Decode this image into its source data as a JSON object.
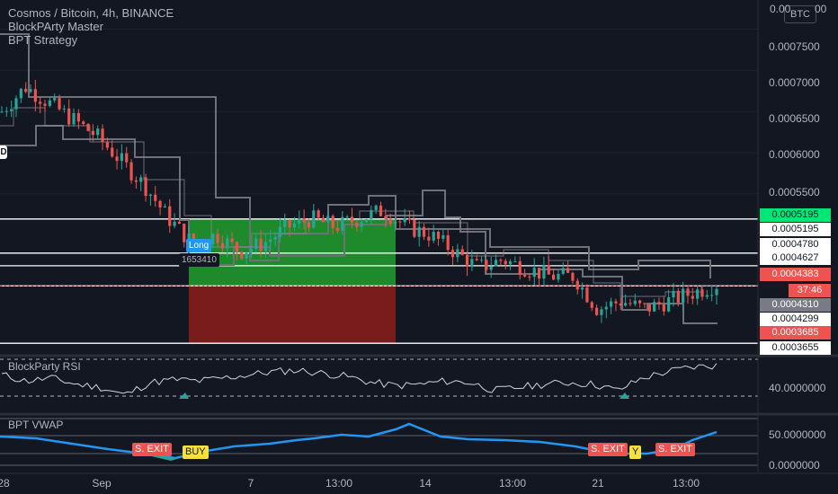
{
  "legend": {
    "symbol": "Cosmos / Bitcoin, 4h, BINANCE",
    "indicator1": "BlockPArty Master",
    "indicator2": "BPT Strategy"
  },
  "currency_badge": "BTC",
  "left_marker": "D",
  "long_label": "Long",
  "long_size": "1653410",
  "rsi_label": "BlockParty RSI",
  "vwap_label": "BPT VWAP",
  "countdown": "37:46",
  "price_axis_labels": [
    "0.0007500",
    "0.0007000",
    "0.0006500",
    "0.0006000",
    "0.0005500"
  ],
  "price_axis_top": "0.00",
  "price_axis_top2": "00",
  "tags": {
    "t1": "0.0005195",
    "t2": "0.0005195",
    "t3": "0.0004780",
    "t4": "0.0004627",
    "t5": "0.0004383",
    "t6": "0.0004310",
    "t7": "0.0004299",
    "t8": "0.0003685",
    "t9": "0.0003655"
  },
  "rsi_axis": "40.0000000",
  "vwap_axis1": "50.0000000",
  "vwap_axis2": "0.0000000",
  "time_labels": [
    "28",
    "Sep",
    "7",
    "13:00",
    "14",
    "13:00",
    "21",
    "13:00"
  ],
  "signals": {
    "sexit1": "S. EXIT",
    "buy1": "BUY",
    "sexit2": "S. EXIT",
    "buy2": "Y",
    "sexit3": "S. EXIT"
  },
  "colors": {
    "up": "#26a69a",
    "down": "#ef5350",
    "gray": "#6f7078",
    "green_zone": "#1e8a2b",
    "red_zone": "#7a1c1c",
    "vwap": "#2196f3",
    "tag_green": "#00e676",
    "tag_red": "#ef5350"
  },
  "chart_data": {
    "type": "candlestick",
    "title": "Cosmos / Bitcoin, 4h, BINANCE",
    "x": [
      "28",
      "Sep",
      "7",
      "13:00",
      "14",
      "13:00",
      "21",
      "13:00"
    ],
    "ylim": [
      0.00036,
      0.00078
    ],
    "horizontal_levels": [
      0.0005195,
      0.000478,
      0.0004627,
      0.0004383,
      0.0003685
    ],
    "close_approx": [
      0.00065,
      0.00068,
      0.00066,
      0.00064,
      0.00062,
      0.00059,
      0.00056,
      0.00052,
      0.00049,
      0.0005,
      0.00048,
      0.00049,
      0.00051,
      0.00052,
      0.00051,
      0.00052,
      0.00053,
      0.00051,
      0.0005,
      0.00048,
      0.00046,
      0.00047,
      0.00046,
      0.00045,
      0.00045,
      0.00041,
      0.00042,
      0.00041,
      0.00042,
      0.00043,
      0.00044
    ],
    "rsi": [
      50,
      46,
      48,
      44,
      42,
      37,
      45,
      47,
      46,
      48,
      50,
      52,
      53,
      51,
      49,
      45,
      43,
      44,
      46,
      45,
      40,
      42,
      44,
      45,
      44,
      40,
      48,
      52,
      55,
      56
    ]
  }
}
